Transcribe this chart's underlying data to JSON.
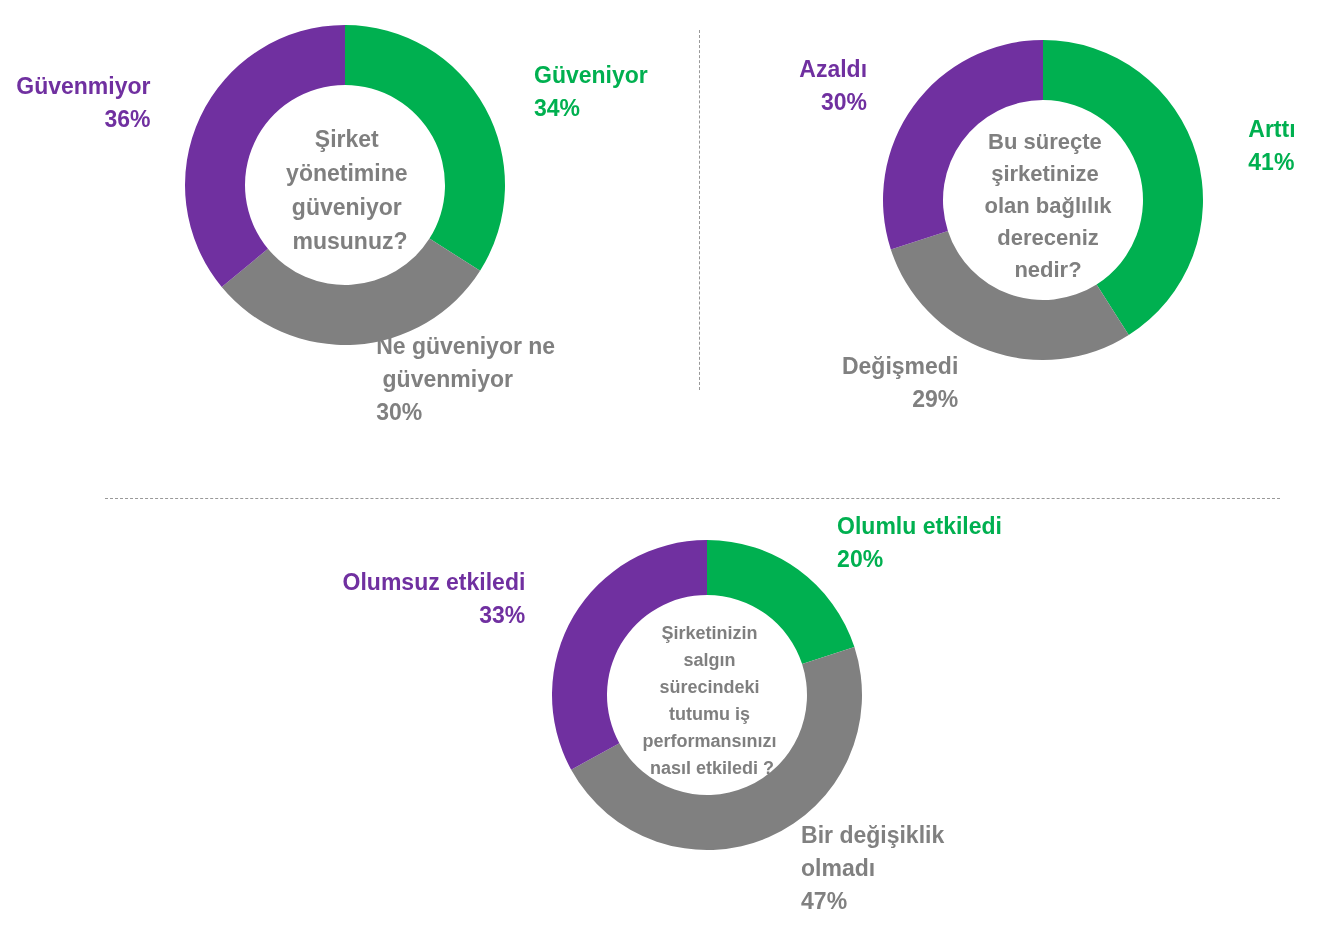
{
  "chart_data": [
    {
      "type": "donut",
      "title": "Şirket yönetimine güveniyor musunuz?",
      "categories": [
        "Güveniyor",
        "Ne güveniyor ne güvenmiyor",
        "Güvenmiyor"
      ],
      "values": [
        34,
        30,
        36
      ],
      "colors": [
        "#00b050",
        "#808080",
        "#7030a0"
      ],
      "value_labels": [
        "34%",
        "30%",
        "36%"
      ],
      "legend": false
    },
    {
      "type": "donut",
      "title": "Bu süreçte şirketinize olan bağlılık dereceniz nedir?",
      "categories": [
        "Arttı",
        "Değişmedi",
        "Azaldı"
      ],
      "values": [
        41,
        29,
        30
      ],
      "colors": [
        "#00b050",
        "#808080",
        "#7030a0"
      ],
      "value_labels": [
        "41%",
        "29%",
        "30%"
      ],
      "legend": false
    },
    {
      "type": "donut",
      "title": "Şirketinizin salgın sürecindeki tutumu iş performansınızı nasıl etkiledi ?",
      "categories": [
        "Olumlu etkiledi",
        "Bir değişiklik olmadı",
        "Olumsuz etkiledi"
      ],
      "values": [
        20,
        47,
        33
      ],
      "colors": [
        "#00b050",
        "#808080",
        "#7030a0"
      ],
      "value_labels": [
        "20%",
        "47%",
        "33%"
      ],
      "legend": false
    }
  ]
}
